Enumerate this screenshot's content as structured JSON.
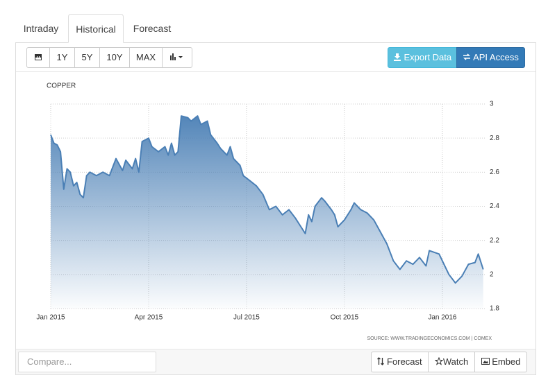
{
  "tabs": [
    "Intraday",
    "Historical",
    "Forecast"
  ],
  "toolbar": {
    "ranges": [
      "1Y",
      "5Y",
      "10Y",
      "MAX"
    ],
    "export": "Export Data",
    "api": "API Access"
  },
  "chart_data": {
    "type": "area",
    "title": "COPPER",
    "source": "SOURCE: WWW.TRADINGECONOMICS.COM | COMEX",
    "x": [
      0,
      0.1,
      0.2,
      0.3,
      0.4,
      0.5,
      0.6,
      0.7,
      0.8,
      0.9,
      1.0,
      1.1,
      1.2,
      1.4,
      1.6,
      1.8,
      1.9,
      2.0,
      2.2,
      2.3,
      2.5,
      2.6,
      2.7,
      2.8,
      3.0,
      3.1,
      3.3,
      3.5,
      3.6,
      3.7,
      3.8,
      3.9,
      4.0,
      4.2,
      4.3,
      4.5,
      4.6,
      4.8,
      4.9,
      5.1,
      5.2,
      5.4,
      5.5,
      5.6,
      5.8,
      5.9,
      6.1,
      6.3,
      6.5,
      6.7,
      6.9,
      7.1,
      7.3,
      7.5,
      7.6,
      7.8,
      7.9,
      8.0,
      8.1,
      8.3,
      8.4,
      8.6,
      8.7,
      8.8,
      9.0,
      9.2,
      9.3,
      9.5,
      9.7,
      9.9,
      10.1,
      10.3,
      10.5,
      10.7,
      10.9,
      11.1,
      11.3,
      11.5,
      11.6,
      11.9,
      12.0,
      12.2,
      12.4,
      12.6,
      12.8,
      13.0,
      13.1,
      13.25
    ],
    "values": [
      2.82,
      2.77,
      2.76,
      2.72,
      2.5,
      2.62,
      2.6,
      2.52,
      2.54,
      2.47,
      2.45,
      2.58,
      2.6,
      2.58,
      2.6,
      2.58,
      2.63,
      2.68,
      2.61,
      2.67,
      2.62,
      2.68,
      2.6,
      2.78,
      2.8,
      2.75,
      2.72,
      2.75,
      2.7,
      2.77,
      2.7,
      2.72,
      2.93,
      2.92,
      2.9,
      2.93,
      2.88,
      2.9,
      2.82,
      2.77,
      2.74,
      2.7,
      2.75,
      2.68,
      2.64,
      2.58,
      2.55,
      2.52,
      2.47,
      2.38,
      2.4,
      2.35,
      2.38,
      2.33,
      2.3,
      2.24,
      2.35,
      2.31,
      2.4,
      2.45,
      2.43,
      2.38,
      2.35,
      2.28,
      2.32,
      2.38,
      2.42,
      2.38,
      2.36,
      2.32,
      2.25,
      2.18,
      2.08,
      2.03,
      2.08,
      2.06,
      2.1,
      2.05,
      2.14,
      2.12,
      2.08,
      2.0,
      1.95,
      1.99,
      2.06,
      2.07,
      2.12,
      2.03
    ],
    "color": "#4a7fb5",
    "xlim": [
      0,
      13.3
    ],
    "xticks": [
      {
        "value": 0,
        "label": "Jan 2015"
      },
      {
        "value": 3,
        "label": "Apr 2015"
      },
      {
        "value": 6,
        "label": "Jul 2015"
      },
      {
        "value": 9,
        "label": "Oct 2015"
      },
      {
        "value": 12,
        "label": "Jan 2016"
      }
    ],
    "ylim": [
      1.8,
      3
    ],
    "yticks": [
      1.8,
      2,
      2.2,
      2.4,
      2.6,
      2.8,
      3
    ],
    "grid": true
  },
  "footer": {
    "compare": "Compare...",
    "buttons": [
      "Forecast",
      "Watch",
      "Embed"
    ]
  }
}
